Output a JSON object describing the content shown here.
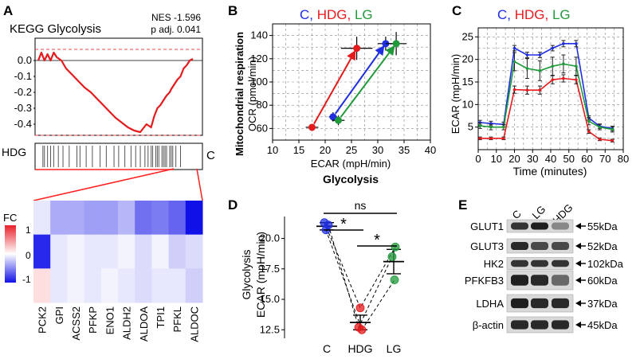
{
  "colors": {
    "red": "#e41a1c",
    "blue": "#1f2fe0",
    "green": "#1f9a3a",
    "dashred": "#e84a4a",
    "gridgray": "#888888"
  },
  "panel_labels": {
    "a": "A",
    "b": "B",
    "c": "C",
    "d": "D",
    "e": "E"
  },
  "gsea": {
    "title": "KEGG Glycolysis",
    "nes": "NES -1.596",
    "padj": "p adj. 0.041",
    "left_label": "HDG",
    "right_label": "C"
  },
  "heatmap": {
    "fc_label": "FC",
    "scale_labels": [
      "1",
      "0",
      "-1"
    ]
  },
  "legend_c_hdg_lg": {
    "c": "C, ",
    "hdg": "HDG",
    "comma": ", ",
    "lg": "LG"
  },
  "western": {
    "lanes": [
      "C",
      "LG",
      "HDG"
    ],
    "proteins": [
      {
        "name": "GLUT1",
        "kda": "55kDa"
      },
      {
        "name": "GLUT3",
        "kda": "52kDa"
      },
      {
        "name": "HK2",
        "kda": "102kDa"
      },
      {
        "name": "PFKFB3",
        "kda": "60kDa"
      },
      {
        "name": "LDHA",
        "kda": "37kDa"
      },
      {
        "name": "β-actin",
        "kda": "45kDa"
      }
    ]
  },
  "chart_data": [
    {
      "type": "line",
      "panel": "A",
      "title": "KEGG Glycolysis",
      "ylabel": "",
      "ylim": [
        -0.5,
        0.1
      ],
      "yticks": [
        0.0,
        -0.1,
        -0.2,
        -0.3,
        -0.4
      ],
      "ytick_labels": [
        "0.0",
        "-0.1",
        "-0.2",
        "-0.3",
        "-0.4"
      ],
      "dashed_lines": [
        0.07,
        -0.47
      ],
      "x": [
        0,
        2,
        4,
        6,
        8,
        10,
        12,
        15,
        18,
        22,
        26,
        30,
        34,
        38,
        42,
        46,
        50,
        54,
        58,
        62,
        66,
        70,
        73,
        75,
        77,
        79,
        81,
        83,
        85,
        86,
        88,
        90,
        92,
        94,
        96,
        98,
        100
      ],
      "values": [
        0.0,
        0.05,
        0.0,
        0.04,
        0.0,
        0.05,
        0.02,
        0.0,
        -0.05,
        -0.09,
        -0.13,
        -0.17,
        -0.2,
        -0.24,
        -0.28,
        -0.32,
        -0.36,
        -0.39,
        -0.42,
        -0.44,
        -0.45,
        -0.4,
        -0.42,
        -0.35,
        -0.3,
        -0.28,
        -0.25,
        -0.22,
        -0.2,
        -0.18,
        -0.15,
        -0.12,
        -0.1,
        -0.05,
        -0.03,
        0.0,
        0.01
      ],
      "hit_positions": [
        3,
        4,
        6,
        8,
        10,
        13,
        16,
        20,
        25,
        27,
        31,
        35,
        40,
        44,
        49,
        52,
        56,
        60,
        63,
        66,
        69,
        71,
        73,
        74,
        76,
        77,
        78,
        80,
        81,
        82,
        83,
        85,
        86,
        87,
        89,
        92
      ]
    },
    {
      "type": "heatmap",
      "panel": "A",
      "legend_title": "FC",
      "categories": [
        "PCK2",
        "GPI",
        "ACSS2",
        "PFKP",
        "ENO1",
        "ALDH2",
        "ALDOA",
        "TPI1",
        "PFKL",
        "ALDOC"
      ],
      "rows": 3,
      "values": [
        [
          -0.1,
          -0.35,
          -0.35,
          -0.4,
          -0.4,
          -0.3,
          -0.6,
          -0.55,
          -0.65,
          -1.0
        ],
        [
          -0.9,
          -0.1,
          -0.05,
          -0.1,
          -0.1,
          -0.05,
          -0.15,
          -0.05,
          -0.2,
          -0.15
        ],
        [
          0.15,
          -0.1,
          -0.05,
          -0.1,
          -0.05,
          -0.1,
          -0.15,
          -0.1,
          -0.1,
          -0.2
        ]
      ],
      "scale": [
        -1,
        1
      ]
    },
    {
      "type": "scatter",
      "panel": "B",
      "title": "C, HDG, LG",
      "xlabel": "ECAR (mpH/min)",
      "xlabel2": "Glycolysis",
      "ylabel": "OCR (pmol/min)",
      "ylabel2": "Mitochondrial respiration",
      "xlim": [
        10,
        40
      ],
      "ylim": [
        50,
        150
      ],
      "xticks": [
        10,
        15,
        20,
        25,
        30,
        35,
        40
      ],
      "yticks": [
        60,
        80,
        100,
        120,
        140
      ],
      "series": [
        {
          "name": "HDG",
          "color": "red",
          "from": [
            17.5,
            61
          ],
          "to": [
            26,
            129
          ],
          "from_err": [
            1.2,
            2
          ],
          "to_err": [
            3,
            10
          ]
        },
        {
          "name": "C",
          "color": "blue",
          "from": [
            21.5,
            70
          ],
          "to": [
            31.5,
            133
          ],
          "from_err": [
            0.8,
            4
          ],
          "to_err": [
            1.5,
            6
          ]
        },
        {
          "name": "LG",
          "color": "green",
          "from": [
            22.5,
            67
          ],
          "to": [
            33.5,
            133
          ],
          "from_err": [
            1.2,
            4
          ],
          "to_err": [
            2,
            10
          ]
        }
      ]
    },
    {
      "type": "line",
      "panel": "C",
      "title": "C, HDG, LG",
      "xlabel": "Time (minutes)",
      "ylabel": "ECAR (mpH/min)",
      "xlim": [
        0,
        80
      ],
      "ylim": [
        0,
        27
      ],
      "xticks": [
        0,
        10,
        20,
        30,
        40,
        50,
        60,
        70,
        80
      ],
      "yticks": [
        5,
        10,
        15,
        20,
        25
      ],
      "x": [
        1,
        7,
        14,
        20,
        27,
        34,
        41,
        47,
        54,
        61,
        67,
        74
      ],
      "series": [
        {
          "name": "C",
          "color": "blue",
          "values": [
            6,
            5.8,
            5.6,
            22.5,
            21,
            21,
            22.5,
            23.5,
            23.5,
            7,
            5.2,
            4.7
          ],
          "err": [
            0.5,
            0.5,
            0.5,
            0.6,
            0.6,
            0.6,
            0.6,
            0.7,
            0.7,
            0.5,
            0.5,
            0.5
          ]
        },
        {
          "name": "LG",
          "color": "green",
          "values": [
            5.3,
            5,
            5,
            19.5,
            18,
            17.5,
            18.5,
            19,
            18.5,
            6.3,
            5,
            4.5
          ],
          "err": [
            0.6,
            0.6,
            0.6,
            2,
            2.2,
            2.2,
            2,
            2,
            2,
            0.8,
            0.6,
            0.6
          ]
        },
        {
          "name": "HDG",
          "color": "red",
          "values": [
            2.5,
            2.5,
            2.5,
            13.3,
            13.2,
            13.2,
            15.5,
            15.8,
            15.5,
            4,
            2.3,
            2
          ],
          "err": [
            0.3,
            0.3,
            0.3,
            0.8,
            0.9,
            0.9,
            0.9,
            0.8,
            0.9,
            0.4,
            0.3,
            0.3
          ]
        }
      ]
    },
    {
      "type": "scatter",
      "panel": "D",
      "ylabel": "ECAR (mpH/min)",
      "ylabel2": "Glycolysis",
      "categories": [
        "C",
        "HDG",
        "LG"
      ],
      "ylim": [
        11.8,
        21.8
      ],
      "yticks": [
        12.5,
        15.0,
        17.5,
        20.0
      ],
      "ytick_labels": [
        "12.5",
        "15.0",
        "17.5",
        "20.0"
      ],
      "points": {
        "C": [
          21.3,
          21.1,
          20.7
        ],
        "HDG": [
          14.3,
          12.7,
          12.5
        ],
        "LG": [
          19.3,
          18.5,
          16.6
        ]
      },
      "means": {
        "C": 21.0,
        "HDG": 13.1,
        "LG": 18.1
      },
      "errs": {
        "C": 0.3,
        "HDG": 0.6,
        "LG": 1.0
      },
      "significance": [
        {
          "from": "C",
          "to": "LG",
          "label": "ns"
        },
        {
          "from": "C",
          "to": "HDG",
          "label": "*"
        },
        {
          "from": "HDG",
          "to": "LG",
          "label": "*"
        }
      ]
    }
  ]
}
